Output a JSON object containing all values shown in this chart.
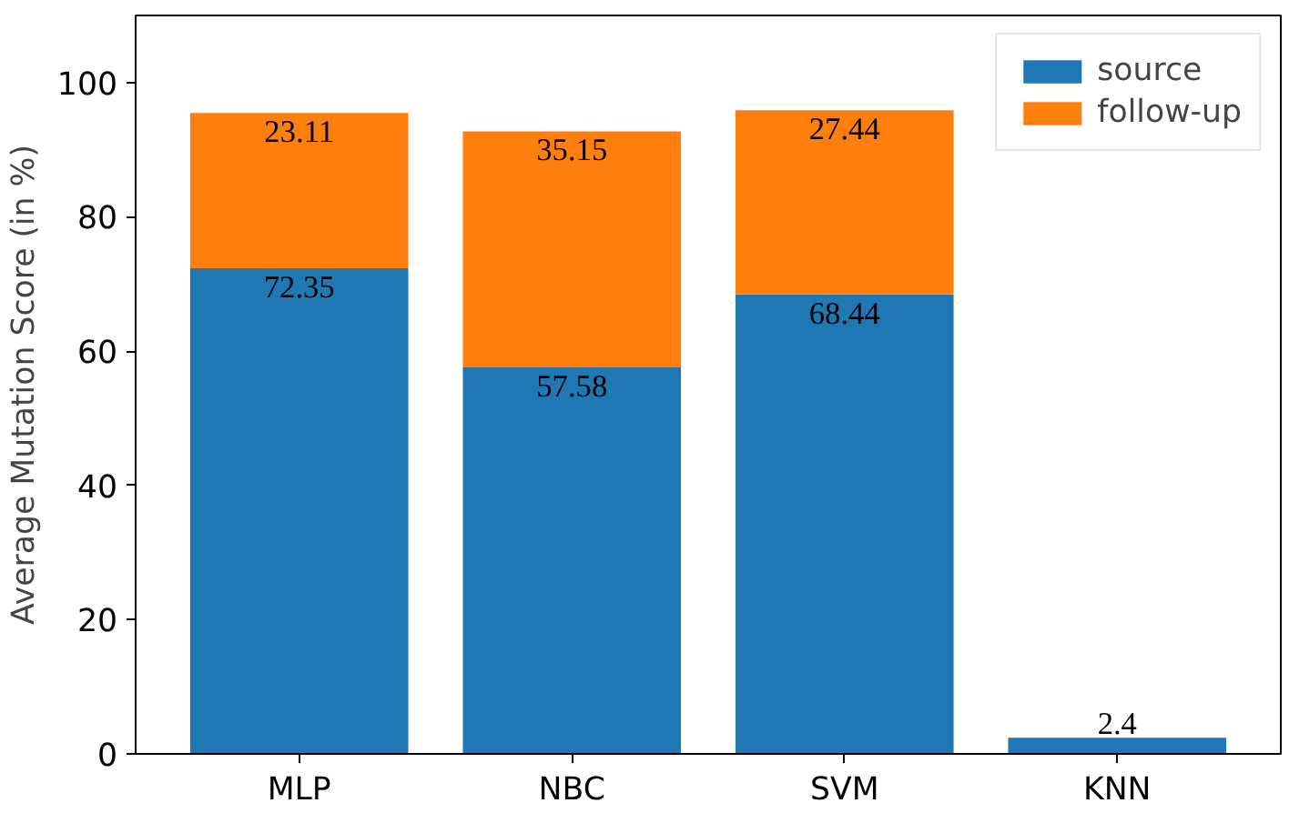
{
  "chart_data": {
    "type": "bar",
    "stacked": true,
    "ylabel": "Average Mutation Score (in %)",
    "categories": [
      "MLP",
      "NBC",
      "SVM",
      "KNN"
    ],
    "ylim": [
      0,
      110
    ],
    "yticks": [
      0,
      20,
      40,
      60,
      80,
      100
    ],
    "legend": "top right",
    "grid": false,
    "series": [
      {
        "name": "source",
        "color": "#1f77b4",
        "values": [
          72.35,
          57.58,
          68.44,
          2.4
        ],
        "value_labels": [
          "72.35",
          "57.58",
          "68.44",
          "2.4"
        ]
      },
      {
        "name": "follow-up",
        "color": "#ff7f0e",
        "values": [
          23.11,
          35.15,
          27.44,
          null
        ],
        "value_labels": [
          "23.11",
          "35.15",
          "27.44",
          null
        ]
      }
    ]
  }
}
